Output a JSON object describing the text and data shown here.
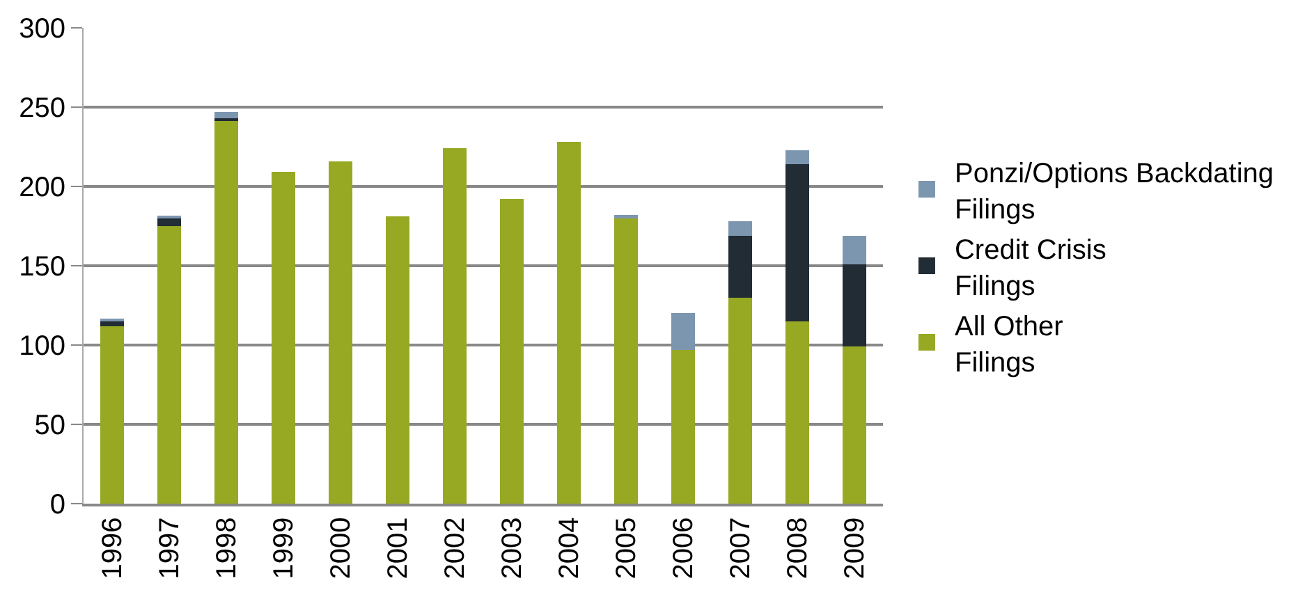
{
  "chart_data": {
    "type": "bar",
    "stacked": true,
    "categories": [
      "1996",
      "1997",
      "1998",
      "1999",
      "2000",
      "2001",
      "2002",
      "2003",
      "2004",
      "2005",
      "2006",
      "2007",
      "2008",
      "2009"
    ],
    "series": [
      {
        "name": "All Other Filings",
        "color": "#97a823",
        "values": [
          112,
          175,
          242,
          209,
          216,
          181,
          224,
          192,
          228,
          180,
          97,
          130,
          115,
          99
        ]
      },
      {
        "name": "Credit Crisis Filings",
        "color": "#212c35",
        "values": [
          3,
          5,
          1,
          0,
          0,
          0,
          0,
          0,
          0,
          0,
          0,
          39,
          99,
          52
        ]
      },
      {
        "name": "Ponzi/Options Backdating Filings",
        "color": "#7d96b0",
        "values": [
          1,
          1,
          4,
          0,
          0,
          0,
          0,
          0,
          0,
          2,
          23,
          9,
          9,
          18
        ]
      }
    ],
    "ylim": [
      0,
      300
    ],
    "yticks": [
      0,
      50,
      100,
      150,
      200,
      250,
      300
    ],
    "grid": "y",
    "legend": "right"
  }
}
